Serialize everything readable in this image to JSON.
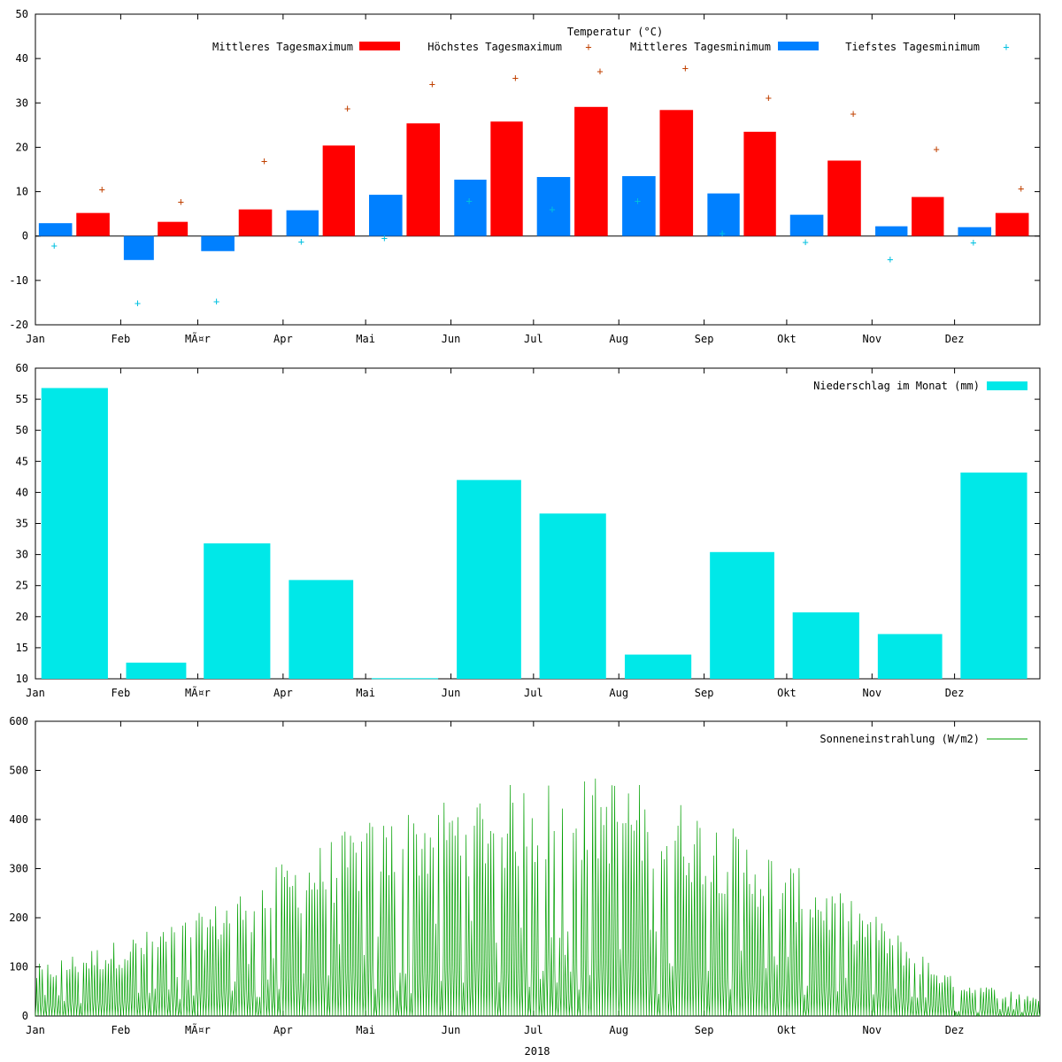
{
  "chart_data": [
    {
      "type": "bar",
      "title": "Temperatur (°C)",
      "x_ticks": [
        "Jan",
        "Feb",
        "MÃ¤r",
        "Apr",
        "Mai",
        "Jun",
        "Jul",
        "Aug",
        "Sep",
        "Okt",
        "Nov",
        "Dez"
      ],
      "ylim": [
        -20,
        50
      ],
      "y_ticks": [
        -20,
        -10,
        0,
        10,
        20,
        30,
        40,
        50
      ],
      "legend_position": "top",
      "colors": {
        "max_bar": "#ff0000",
        "min_bar": "#0080ff",
        "max_point": "#c04000",
        "min_point": "#00c0e0"
      },
      "series": [
        {
          "name": "Mittleres Tagesmaximum",
          "kind": "bar",
          "values": [
            5.2,
            3.2,
            6.0,
            20.4,
            25.4,
            25.8,
            29.1,
            28.4,
            23.5,
            17.0,
            8.8,
            5.2
          ]
        },
        {
          "name": "Höchstes Tagesmaximum",
          "kind": "point",
          "values": [
            10.5,
            7.7,
            16.9,
            28.8,
            34.2,
            35.6,
            37.1,
            37.8,
            31.2,
            27.6,
            19.6,
            10.7
          ]
        },
        {
          "name": "Mittleres Tagesminimum",
          "kind": "bar",
          "values": [
            2.9,
            -5.4,
            -3.4,
            5.8,
            9.3,
            12.7,
            13.3,
            13.5,
            9.6,
            4.8,
            2.2,
            2.0
          ]
        },
        {
          "name": "Tiefstes Tagesminimum",
          "kind": "point",
          "values": [
            -2.2,
            -15.1,
            -14.7,
            -1.3,
            -0.5,
            7.9,
            6.0,
            7.9,
            0.6,
            -1.4,
            -5.2,
            -1.5
          ]
        }
      ]
    },
    {
      "type": "bar",
      "x_ticks": [
        "Jan",
        "Feb",
        "MÃ¤r",
        "Apr",
        "Mai",
        "Jun",
        "Jul",
        "Aug",
        "Sep",
        "Okt",
        "Nov",
        "Dez"
      ],
      "ylim": [
        10,
        60
      ],
      "y_ticks": [
        10,
        15,
        20,
        25,
        30,
        35,
        40,
        45,
        50,
        55,
        60
      ],
      "legend_position": "top-right",
      "color": "#00e8e8",
      "series": [
        {
          "name": "Niederschlag im Monat (mm)",
          "values": [
            56.8,
            12.6,
            31.8,
            25.9,
            10.1,
            42.0,
            36.6,
            13.9,
            30.4,
            20.7,
            17.2,
            43.2
          ]
        }
      ]
    },
    {
      "type": "line",
      "xlabel": "2018",
      "x_ticks": [
        "Jan",
        "Feb",
        "MÃ¤r",
        "Apr",
        "Mai",
        "Jun",
        "Jul",
        "Aug",
        "Sep",
        "Okt",
        "Nov",
        "Dez"
      ],
      "ylim": [
        0,
        600
      ],
      "y_ticks": [
        0,
        100,
        200,
        300,
        400,
        500,
        600
      ],
      "legend_position": "top-right",
      "color": "#00a000",
      "series": [
        {
          "name": "Sonneneinstrahlung (W/m2)",
          "daily_peak_envelope": {
            "days": [
              0,
              31,
              59,
              90,
              120,
              151,
              181,
              212,
              243,
              273,
              304,
              334,
              364
            ],
            "peak_values": [
              100,
              150,
              200,
              300,
              380,
              430,
              460,
              470,
              400,
              300,
              200,
              70,
              40
            ]
          }
        }
      ]
    }
  ]
}
